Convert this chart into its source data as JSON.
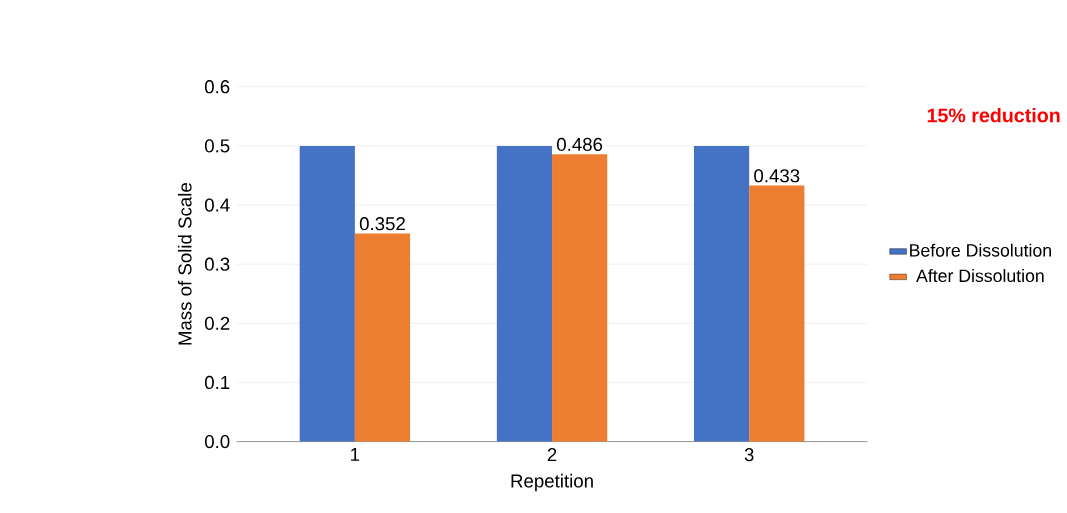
{
  "chart_data": {
    "type": "bar",
    "xlabel": "Repetition",
    "ylabel": "Mass of Solid Scale",
    "categories": [
      "1",
      "2",
      "3"
    ],
    "series": [
      {
        "name": "Before Dissolution",
        "color": "#4472c4",
        "values": [
          0.5,
          0.5,
          0.5
        ]
      },
      {
        "name": "After Dissolution",
        "color": "#ed7d31",
        "values": [
          0.352,
          0.486,
          0.433
        ],
        "value_labels": [
          "0.352",
          "0.486",
          "0.433"
        ]
      }
    ],
    "ylim": [
      0,
      0.6
    ],
    "yticks": [
      {
        "value": 0,
        "label": "0.0"
      },
      {
        "value": 0.1,
        "label": "0.1"
      },
      {
        "value": 0.2,
        "label": "0.2"
      },
      {
        "value": 0.3,
        "label": "0.3"
      },
      {
        "value": 0.4,
        "label": "0.4"
      },
      {
        "value": 0.5,
        "label": "0.5"
      },
      {
        "value": 0.6,
        "label": "0.6"
      }
    ],
    "grid": "y",
    "legend": "right",
    "annotations": [
      "15% reduction"
    ]
  }
}
